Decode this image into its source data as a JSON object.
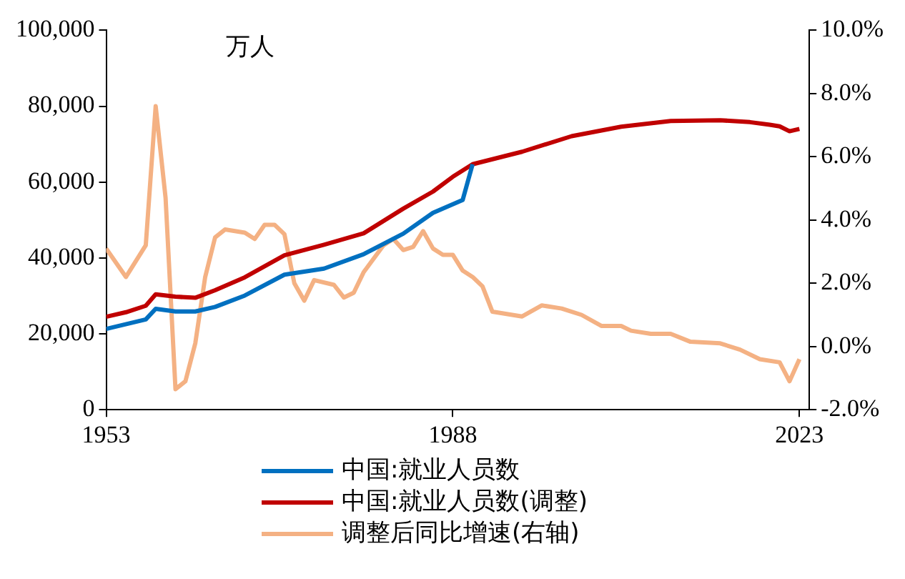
{
  "chart_data": {
    "type": "line",
    "annotations": [
      "万人"
    ],
    "xlim": [
      1953,
      2024
    ],
    "xticks": [
      1953,
      1988,
      2023
    ],
    "ylim": [
      0,
      100000
    ],
    "yticks": [
      {
        "value": 0,
        "label": "0"
      },
      {
        "value": 20000,
        "label": "20,000"
      },
      {
        "value": 40000,
        "label": "40,000"
      },
      {
        "value": 60000,
        "label": "60,000"
      },
      {
        "value": 80000,
        "label": "80,000"
      },
      {
        "value": 100000,
        "label": "100,000"
      }
    ],
    "y2lim": [
      -2,
      10
    ],
    "y2ticks": [
      {
        "value": -2,
        "label": "-2.0%"
      },
      {
        "value": 0,
        "label": "0.0%"
      },
      {
        "value": 2,
        "label": "2.0%"
      },
      {
        "value": 4,
        "label": "4.0%"
      },
      {
        "value": 6,
        "label": "6.0%"
      },
      {
        "value": 8,
        "label": "8.0%"
      },
      {
        "value": 10,
        "label": "10.0%"
      }
    ],
    "legend": "bottom",
    "grid": false,
    "marker": "none",
    "line_style": "solid",
    "series": [
      {
        "name": "中国:就业人员数",
        "color": "#0070c0",
        "x": [
          1953,
          1957,
          1958,
          1960,
          1962,
          1964,
          1967,
          1971,
          1975,
          1979,
          1983,
          1986,
          1989,
          1990
        ],
        "values": [
          21300,
          23800,
          26600,
          25900,
          25900,
          27100,
          30100,
          35600,
          37200,
          41000,
          46400,
          51900,
          55300,
          64700
        ]
      },
      {
        "name": "中国:就业人员数(调整)",
        "color": "#c00000",
        "x": [
          1953,
          1955,
          1957,
          1958,
          1960,
          1962,
          1964,
          1967,
          1971,
          1975,
          1979,
          1983,
          1986,
          1988,
          1990,
          1995,
          2000,
          2005,
          2010,
          2015,
          2018,
          2020,
          2021,
          2022,
          2023
        ],
        "values": [
          24500,
          25700,
          27400,
          30400,
          29800,
          29500,
          31500,
          34900,
          40700,
          43500,
          46500,
          53000,
          57500,
          61400,
          64700,
          68000,
          72100,
          74600,
          76100,
          76300,
          75800,
          75100,
          74700,
          73400,
          74000
        ]
      },
      {
        "name": "调整后同比增速(右轴)",
        "color": "#f4b183",
        "axis": "y2",
        "x": [
          1953,
          1955,
          1957,
          1958,
          1959,
          1960,
          1961,
          1962,
          1963,
          1964,
          1965,
          1967,
          1968,
          1969,
          1970,
          1971,
          1972,
          1973,
          1974,
          1976,
          1977,
          1978,
          1979,
          1981,
          1982,
          1983,
          1984,
          1985,
          1986,
          1987,
          1988,
          1989,
          1990,
          1991,
          1992,
          1995,
          1997,
          1999,
          2001,
          2003,
          2005,
          2006,
          2008,
          2010,
          2012,
          2015,
          2017,
          2019,
          2021,
          2022,
          2023
        ],
        "values": [
          3.1,
          2.2,
          3.2,
          7.6,
          4.7,
          -1.35,
          -1.1,
          0.1,
          2.2,
          3.45,
          3.7,
          3.6,
          3.4,
          3.85,
          3.85,
          3.55,
          2.0,
          1.45,
          2.1,
          1.95,
          1.55,
          1.7,
          2.35,
          3.2,
          3.4,
          3.05,
          3.15,
          3.65,
          3.1,
          2.9,
          2.9,
          2.4,
          2.2,
          1.9,
          1.1,
          0.95,
          1.3,
          1.2,
          1.0,
          0.65,
          0.65,
          0.5,
          0.4,
          0.4,
          0.15,
          0.1,
          -0.1,
          -0.4,
          -0.5,
          -1.1,
          -0.4
        ]
      }
    ]
  }
}
